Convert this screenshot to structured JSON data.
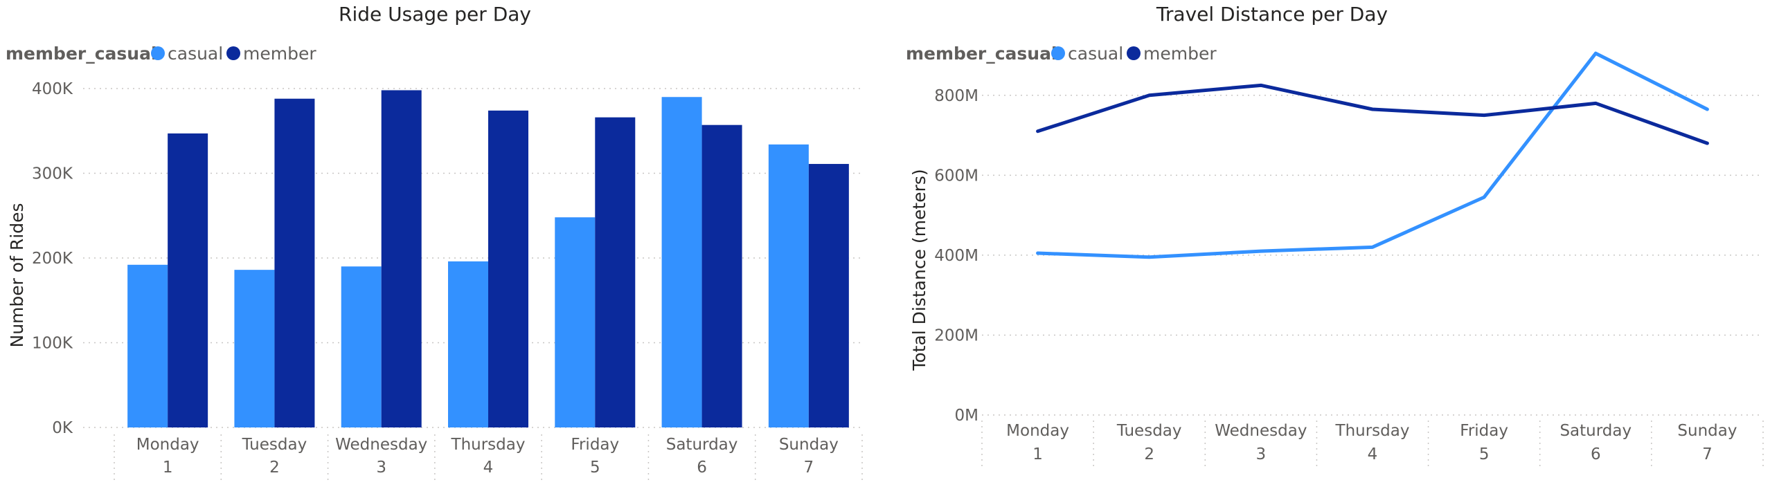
{
  "colors": {
    "casual": "#3391FF",
    "member": "#0B2A9C",
    "text": "#252423",
    "muted": "#605E5C",
    "grid": "#C8C6C4"
  },
  "chart_data": [
    {
      "type": "bar",
      "title": "Ride Usage per Day",
      "legend_title": "member_casual",
      "legend_position": "top-left",
      "ylabel": "Number of Rides",
      "xlabel": "",
      "categories": [
        "Monday",
        "Tuesday",
        "Wednesday",
        "Thursday",
        "Friday",
        "Saturday",
        "Sunday"
      ],
      "category_numbers": [
        "1",
        "2",
        "3",
        "4",
        "5",
        "6",
        "7"
      ],
      "y_ticks": [
        0,
        100000,
        200000,
        300000,
        400000
      ],
      "y_tick_labels": [
        "0K",
        "100K",
        "200K",
        "300K",
        "400K"
      ],
      "ylim": [
        0,
        400000
      ],
      "grid": true,
      "series": [
        {
          "name": "casual",
          "values": [
            192000,
            186000,
            190000,
            196000,
            248000,
            390000,
            334000
          ]
        },
        {
          "name": "member",
          "values": [
            347000,
            388000,
            398000,
            374000,
            366000,
            357000,
            311000
          ]
        }
      ]
    },
    {
      "type": "line",
      "title": "Travel Distance per Day",
      "legend_title": "member_casual",
      "legend_position": "top-left",
      "ylabel": "Total Distance (meters)",
      "xlabel": "",
      "categories": [
        "Monday",
        "Tuesday",
        "Wednesday",
        "Thursday",
        "Friday",
        "Saturday",
        "Sunday"
      ],
      "category_numbers": [
        "1",
        "2",
        "3",
        "4",
        "5",
        "6",
        "7"
      ],
      "y_ticks": [
        0,
        200000000,
        400000000,
        600000000,
        800000000
      ],
      "y_tick_labels": [
        "0M",
        "200M",
        "400M",
        "600M",
        "800M"
      ],
      "ylim": [
        0,
        900000000
      ],
      "grid": true,
      "series": [
        {
          "name": "casual",
          "values": [
            405000000,
            395000000,
            410000000,
            420000000,
            545000000,
            905000000,
            765000000
          ]
        },
        {
          "name": "member",
          "values": [
            710000000,
            800000000,
            825000000,
            765000000,
            750000000,
            780000000,
            680000000
          ]
        }
      ]
    }
  ]
}
